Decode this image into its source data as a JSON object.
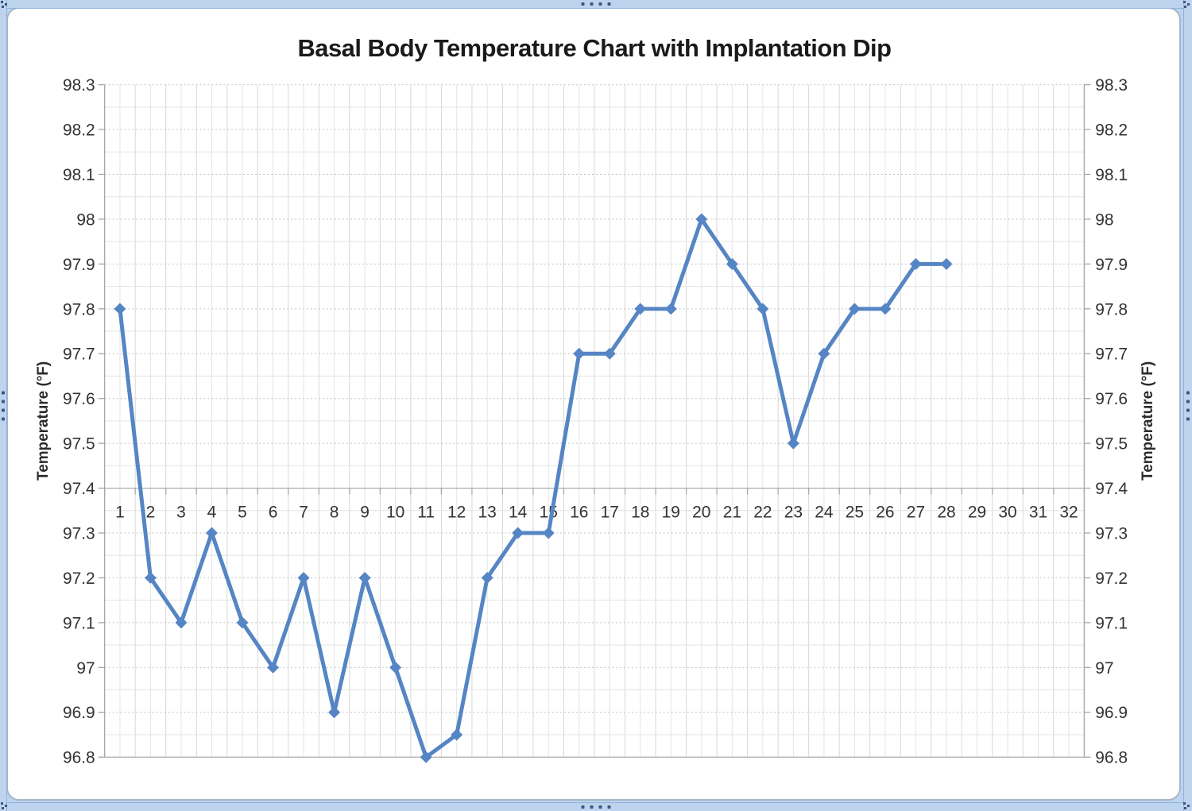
{
  "page": {
    "background_color": "#bdd3ee"
  },
  "selection_frame": {
    "edge_grip_icon": "four-dots-drag-handle",
    "corner_grip_icon": "corner-dots-resize-handle",
    "strip_color": "#bdd3ee",
    "edge_line_color": "#8fb3de",
    "grip_dot_color": "#3a5780"
  },
  "chart_data": {
    "type": "line",
    "title": "Basal Body Temperature Chart with Implantation Dip",
    "x_axis": {
      "categories": [
        1,
        2,
        3,
        4,
        5,
        6,
        7,
        8,
        9,
        10,
        11,
        12,
        13,
        14,
        15,
        16,
        17,
        18,
        19,
        20,
        21,
        22,
        23,
        24,
        25,
        26,
        27,
        28,
        29,
        30,
        31,
        32
      ],
      "tick_labels": [
        "1",
        "2",
        "3",
        "4",
        "5",
        "6",
        "7",
        "8",
        "9",
        "10",
        "11",
        "12",
        "13",
        "14",
        "15",
        "16",
        "17",
        "18",
        "19",
        "20",
        "21",
        "22",
        "23",
        "24",
        "25",
        "26",
        "27",
        "28",
        "29",
        "30",
        "31",
        "32"
      ],
      "minor_unit": 0.5,
      "axis_crosses_at": 97.4
    },
    "y_axis": {
      "label": "Temperature (°F)",
      "secondary_axis_label": "Temperature (°F)",
      "min": 96.8,
      "max": 98.3,
      "major_unit": 0.1,
      "minor_unit": 0.05,
      "tick_labels": [
        "98.3",
        "98.2",
        "98.1",
        "98",
        "97.9",
        "97.8",
        "97.7",
        "97.6",
        "97.5",
        "97.4",
        "97.3",
        "97.2",
        "97.1",
        "97",
        "96.9",
        "96.8"
      ]
    },
    "series": [
      {
        "x": [
          1,
          2,
          3,
          4,
          5,
          6,
          7,
          8,
          9,
          10,
          11,
          12,
          13,
          14,
          15,
          16,
          17,
          18,
          19,
          20,
          21,
          22,
          23,
          24,
          25,
          26,
          27,
          28
        ],
        "values": [
          97.8,
          97.2,
          97.1,
          97.3,
          97.1,
          97.0,
          97.2,
          96.9,
          97.2,
          97.0,
          96.8,
          96.85,
          97.2,
          97.3,
          97.3,
          97.7,
          97.7,
          97.8,
          97.8,
          98.0,
          97.9,
          97.8,
          97.5,
          97.7,
          97.8,
          97.8,
          97.9,
          97.9
        ],
        "color": "#5585c4",
        "marker": "diamond"
      }
    ],
    "grid": {
      "horizontal_major_style": "dotted",
      "major_color": "#c2c2c2",
      "minor_color": "#e4e4e4",
      "axis_color": "#a6a6a6"
    },
    "legend": "none",
    "text_color": "#333333"
  }
}
